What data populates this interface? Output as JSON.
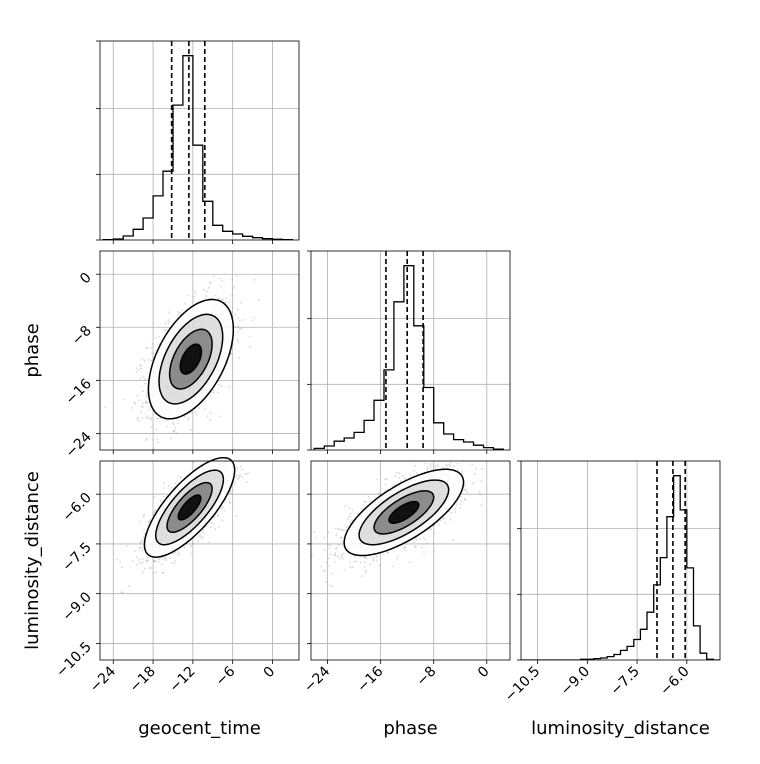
{
  "chart_data": {
    "type": "corner",
    "parameters": [
      "geocent_time",
      "phase",
      "luminosity_distance"
    ],
    "ranges": {
      "geocent_time": [
        -26,
        4
      ],
      "phase": [
        -26.5,
        3.5
      ],
      "luminosity_distance": [
        -11.0,
        -5.0
      ]
    },
    "ticks": {
      "geocent_time": {
        "values": [
          -24,
          -18,
          -12,
          -6,
          0
        ],
        "labels": [
          "−24",
          "−18",
          "−12",
          "−6",
          "0"
        ]
      },
      "phase": {
        "values": [
          -24,
          -16,
          -8,
          0
        ],
        "labels": [
          "−24",
          "−16",
          "−8",
          "0"
        ]
      },
      "luminosity_distance": {
        "values": [
          -10.5,
          -9.0,
          -7.5,
          -6.0
        ],
        "labels": [
          "−10.5",
          "−9.0",
          "−7.5",
          "−6.0"
        ]
      }
    },
    "xlabels": [
      "geocent_time",
      "phase",
      "luminosity_distance"
    ],
    "ylabels": [
      "",
      "phase",
      "luminosity_distance"
    ],
    "grid": true,
    "quantiles": {
      "geocent_time": [
        -15.2,
        -12.6,
        -10.2
      ],
      "phase": [
        -15.2,
        -12.0,
        -9.6
      ],
      "luminosity_distance": [
        -6.9,
        -6.42,
        -6.05
      ]
    },
    "histograms": {
      "geocent_time": {
        "edges": [
          -25.5,
          -24,
          -22.5,
          -21,
          -19.5,
          -18,
          -16.5,
          -15,
          -13.5,
          -12,
          -10.5,
          -9,
          -7.5,
          -6,
          -4.5,
          -3,
          -1.5,
          0,
          1.5,
          3
        ],
        "counts": [
          0.005,
          0.015,
          0.06,
          0.16,
          0.33,
          0.66,
          1.03,
          2.02,
          2.76,
          1.42,
          0.58,
          0.22,
          0.13,
          0.09,
          0.055,
          0.035,
          0.02,
          0.01,
          0.005
        ]
      },
      "phase": {
        "edges": [
          -26,
          -24.5,
          -23,
          -21.5,
          -20,
          -18.5,
          -17,
          -15.5,
          -14,
          -12.5,
          -11,
          -9.5,
          -8,
          -6.5,
          -5,
          -3.5,
          -2,
          -0.5,
          1,
          2.5
        ],
        "counts": [
          0.02,
          0.05,
          0.11,
          0.15,
          0.22,
          0.37,
          0.62,
          1.0,
          1.85,
          2.3,
          1.55,
          0.78,
          0.34,
          0.2,
          0.13,
          0.1,
          0.06,
          0.03,
          0.01
        ]
      },
      "luminosity_distance": {
        "edges": [
          -11.0,
          -10.8,
          -10.6,
          -10.4,
          -10.2,
          -10.0,
          -9.8,
          -9.6,
          -9.4,
          -9.2,
          -9.0,
          -8.8,
          -8.6,
          -8.4,
          -8.2,
          -8.0,
          -7.8,
          -7.6,
          -7.4,
          -7.2,
          -7.0,
          -6.8,
          -6.6,
          -6.4,
          -6.2,
          -6.0,
          -5.8,
          -5.6,
          -5.4,
          -5.2,
          -5.0
        ],
        "counts": [
          0,
          0,
          0,
          0,
          0,
          0,
          0,
          0,
          0,
          0.01,
          0.01,
          0.02,
          0.03,
          0.05,
          0.08,
          0.14,
          0.2,
          0.3,
          0.45,
          0.7,
          1.1,
          1.5,
          2.1,
          2.7,
          2.2,
          1.35,
          0.5,
          0.1,
          0.01,
          0
        ]
      }
    },
    "pairs": [
      {
        "x": "geocent_time",
        "y": "phase",
        "mean": [
          -12.3,
          -12.8
        ],
        "std": [
          3.2,
          4.5
        ],
        "rho": 0.5,
        "n": 1400
      },
      {
        "x": "geocent_time",
        "y": "luminosity_distance",
        "mean": [
          -12.5,
          -6.4
        ],
        "std": [
          3.4,
          0.75
        ],
        "rho": 0.75,
        "n": 1400
      },
      {
        "x": "phase",
        "y": "luminosity_distance",
        "mean": [
          -12.5,
          -6.55
        ],
        "std": [
          4.5,
          0.65
        ],
        "rho": 0.7,
        "n": 1400
      }
    ],
    "contour_levels_sigma": [
      0.5,
      1.0,
      1.5,
      2.0
    ]
  },
  "colors": {
    "axes": "#000000",
    "grid": "#b0b0b0",
    "points": "#8c8c8c",
    "fill_dark": "#111111",
    "fill_mid": "#555555",
    "fill_light": "#bbbbbb"
  }
}
